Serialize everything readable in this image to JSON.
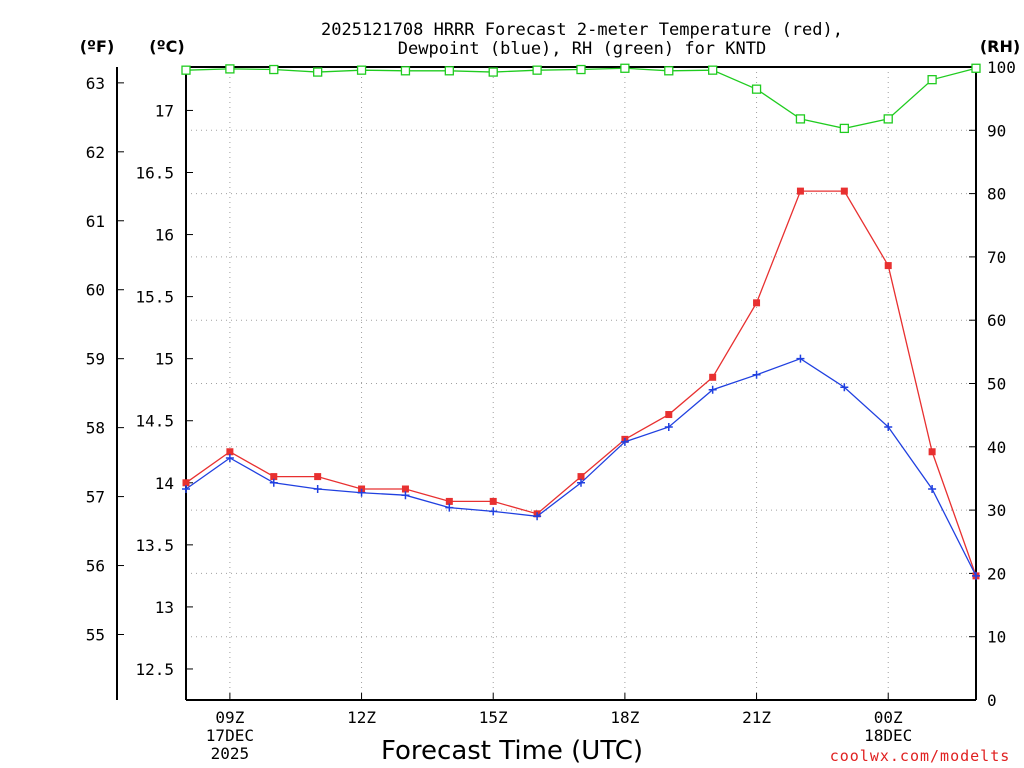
{
  "title_line1": "2025121708 HRRR Forecast 2-meter Temperature (red),",
  "title_line2": "Dewpoint (blue), RH (green) for KNTD",
  "unit_f": "(ºF)",
  "unit_c": "(ºC)",
  "unit_rh": "(RH)",
  "x_axis_title": "Forecast Time (UTC)",
  "credit": "coolwx.com/modelts",
  "chart_data": {
    "type": "line",
    "title": "2025121708 HRRR Forecast 2-meter Temperature (red), Dewpoint (blue), RH (green) for KNTD",
    "xlabel": "Forecast Time (UTC)",
    "x_hours": [
      8,
      9,
      10,
      11,
      12,
      13,
      14,
      15,
      16,
      17,
      18,
      19,
      20,
      21,
      22,
      23,
      24,
      25,
      26
    ],
    "x_ticks": [
      {
        "hour": 9,
        "line1": "09Z",
        "line2": "17DEC",
        "line3": "2025"
      },
      {
        "hour": 12,
        "line1": "12Z",
        "line2": "",
        "line3": ""
      },
      {
        "hour": 15,
        "line1": "15Z",
        "line2": "",
        "line3": ""
      },
      {
        "hour": 18,
        "line1": "18Z",
        "line2": "",
        "line3": ""
      },
      {
        "hour": 21,
        "line1": "21Z",
        "line2": "",
        "line3": ""
      },
      {
        "hour": 24,
        "line1": "00Z",
        "line2": "18DEC",
        "line3": ""
      }
    ],
    "xlim": [
      8,
      26
    ],
    "y_celsius": {
      "label": "(ºC)",
      "lim": [
        12.25,
        17.35
      ],
      "ticks": [
        12.5,
        13,
        13.5,
        14,
        14.5,
        15,
        15.5,
        16,
        16.5,
        17
      ],
      "tick_labels": [
        "12.5",
        "13",
        "13.5",
        "14",
        "14.5",
        "15",
        "15.5",
        "16",
        "16.5",
        "17"
      ]
    },
    "y_fahrenheit": {
      "label": "(ºF)",
      "ticks": [
        55,
        56,
        57,
        58,
        59,
        60,
        61,
        62,
        63
      ],
      "tick_labels": [
        "55",
        "56",
        "57",
        "58",
        "59",
        "60",
        "61",
        "62",
        "63"
      ]
    },
    "y_rh": {
      "label": "(RH)",
      "lim": [
        0,
        100
      ],
      "ticks": [
        0,
        10,
        20,
        30,
        40,
        50,
        60,
        70,
        80,
        90,
        100
      ],
      "tick_labels": [
        "0",
        "10",
        "20",
        "30",
        "40",
        "50",
        "60",
        "70",
        "80",
        "90",
        "100"
      ]
    },
    "series": [
      {
        "name": "Temperature",
        "axis": "celsius",
        "color": "#e83030",
        "marker": "filled-square",
        "values": [
          14.0,
          14.25,
          14.05,
          14.05,
          13.95,
          13.95,
          13.85,
          13.85,
          13.75,
          14.05,
          14.35,
          14.55,
          14.85,
          15.45,
          16.35,
          16.35,
          15.75,
          14.25,
          13.25
        ]
      },
      {
        "name": "Dewpoint",
        "axis": "celsius",
        "color": "#2040e0",
        "marker": "plus",
        "values": [
          13.95,
          14.2,
          14.0,
          13.95,
          13.92,
          13.9,
          13.8,
          13.77,
          13.73,
          14.0,
          14.33,
          14.45,
          14.75,
          14.87,
          15.0,
          14.77,
          14.45,
          13.95,
          13.25
        ]
      },
      {
        "name": "RH",
        "axis": "rh",
        "color": "#20cc20",
        "marker": "open-square",
        "values": [
          99.5,
          99.7,
          99.6,
          99.2,
          99.5,
          99.4,
          99.4,
          99.2,
          99.5,
          99.6,
          99.8,
          99.4,
          99.5,
          96.5,
          91.8,
          90.3,
          91.8,
          98.0,
          99.8
        ]
      }
    ]
  }
}
